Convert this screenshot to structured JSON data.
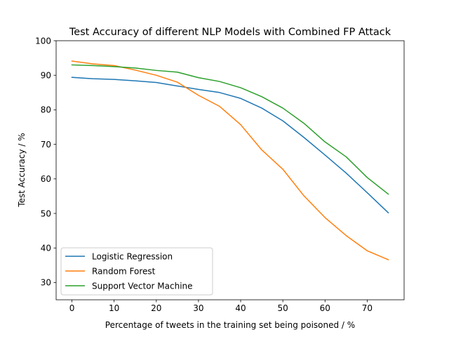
{
  "chart_data": {
    "type": "line",
    "title": "Test Accuracy of different NLP Models with Combined FP Attack",
    "xlabel": "Percentage of tweets in the training set being poisoned / %",
    "ylabel": "Test Accuracy / %",
    "xlim": [
      -3.75,
      78.75
    ],
    "ylim": [
      25,
      100
    ],
    "xticks": [
      0,
      10,
      20,
      30,
      40,
      50,
      60,
      70
    ],
    "yticks": [
      30,
      40,
      50,
      60,
      70,
      80,
      90,
      100
    ],
    "grid": false,
    "legend_position": "lower-left",
    "x": [
      0,
      5,
      10,
      15,
      20,
      25,
      30,
      35,
      40,
      45,
      50,
      55,
      60,
      65,
      70,
      75
    ],
    "series": [
      {
        "name": "Logistic Regression",
        "color": "#1f77b4",
        "values": [
          89.4,
          89.0,
          88.8,
          88.4,
          87.9,
          86.9,
          85.9,
          85.0,
          83.3,
          80.5,
          76.8,
          72.0,
          66.9,
          61.7,
          56.0,
          50.2
        ]
      },
      {
        "name": "Random Forest",
        "color": "#ff7f0e",
        "values": [
          94.1,
          93.3,
          92.8,
          91.5,
          90.0,
          88.0,
          84.2,
          81.0,
          75.7,
          68.4,
          62.8,
          55.1,
          48.8,
          43.6,
          39.2,
          36.6
        ]
      },
      {
        "name": "Support Vector Machine",
        "color": "#2ca02c",
        "values": [
          93.0,
          92.8,
          92.5,
          92.1,
          91.4,
          90.9,
          89.3,
          88.2,
          86.4,
          83.8,
          80.5,
          76.1,
          70.7,
          66.4,
          60.4,
          55.6
        ]
      }
    ]
  }
}
